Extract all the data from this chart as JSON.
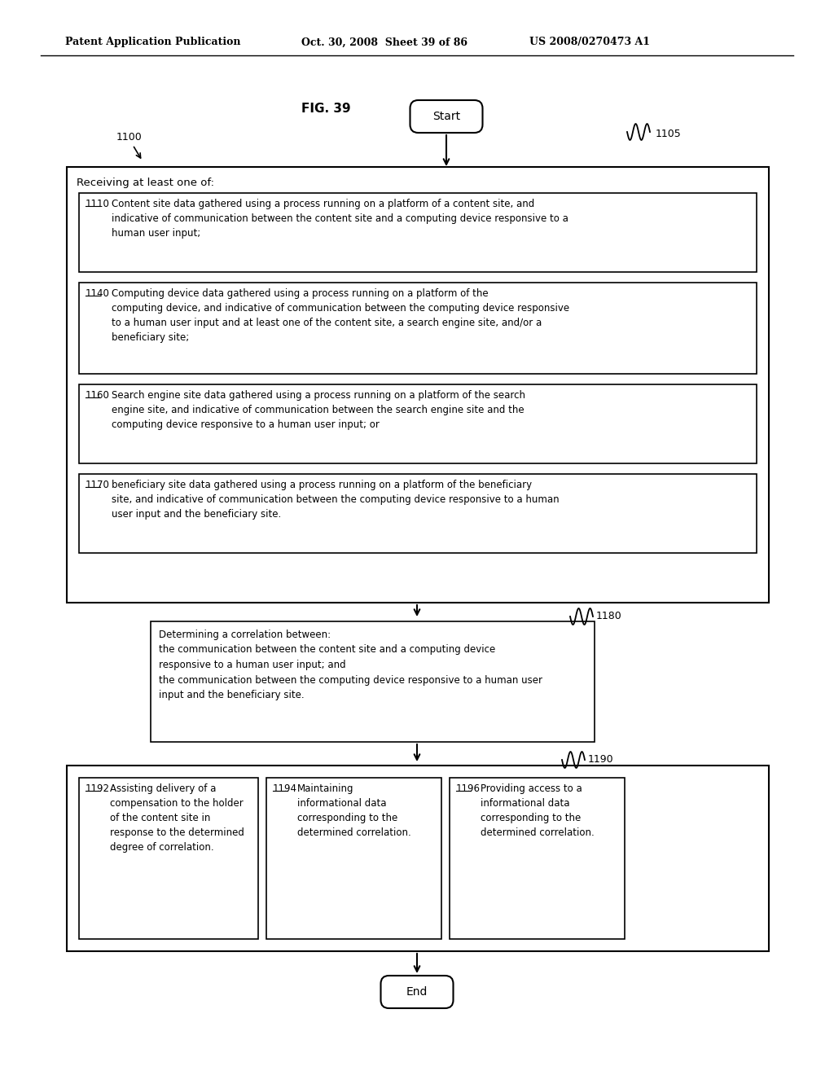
{
  "header_left": "Patent Application Publication",
  "header_mid": "Oct. 30, 2008  Sheet 39 of 86",
  "header_right": "US 2008/0270473 A1",
  "fig_label": "FIG. 39",
  "bg_color": "#ffffff",
  "text_color": "#000000",
  "label_1100": "1100",
  "label_1105": "1105",
  "label_1180": "1180",
  "label_1190": "1190",
  "start_label": "Start",
  "end_label": "End",
  "outer_title": "Receiving at least one of:",
  "box1110_label": "1110",
  "box1110_text": "Content site data gathered using a process running on a platform of a content site, and\nindicative of communication between the content site and a computing device responsive to a\nhuman user input;",
  "box1140_label": "1140",
  "box1140_text": "Computing device data gathered using a process running on a platform of the\ncomputing device, and indicative of communication between the computing device responsive\nto a human user input and at least one of the content site, a search engine site, and/or a\nbeneficiary site;",
  "box1160_label": "1160",
  "box1160_text": "Search engine site data gathered using a process running on a platform of the search\nengine site, and indicative of communication between the search engine site and the\ncomputing device responsive to a human user input; or",
  "box1170_label": "1170",
  "box1170_text": "beneficiary site data gathered using a process running on a platform of the beneficiary\nsite, and indicative of communication between the computing device responsive to a human\nuser input and the beneficiary site.",
  "box1180_text": "Determining a correlation between:\nthe communication between the content site and a computing device\nresponsive to a human user input; and\nthe communication between the computing device responsive to a human user\ninput and the beneficiary site.",
  "box1192_label": "1192",
  "box1192_text": "Assisting delivery of a\ncompensation to the holder\nof the content site in\nresponse to the determined\ndegree of correlation.",
  "box1194_label": "1194",
  "box1194_text": "Maintaining\ninformational data\ncorresponding to the\ndetermined correlation.",
  "box1196_label": "1196",
  "box1196_text": "Providing access to a\ninformational data\ncorresponding to the\ndetermined correlation."
}
